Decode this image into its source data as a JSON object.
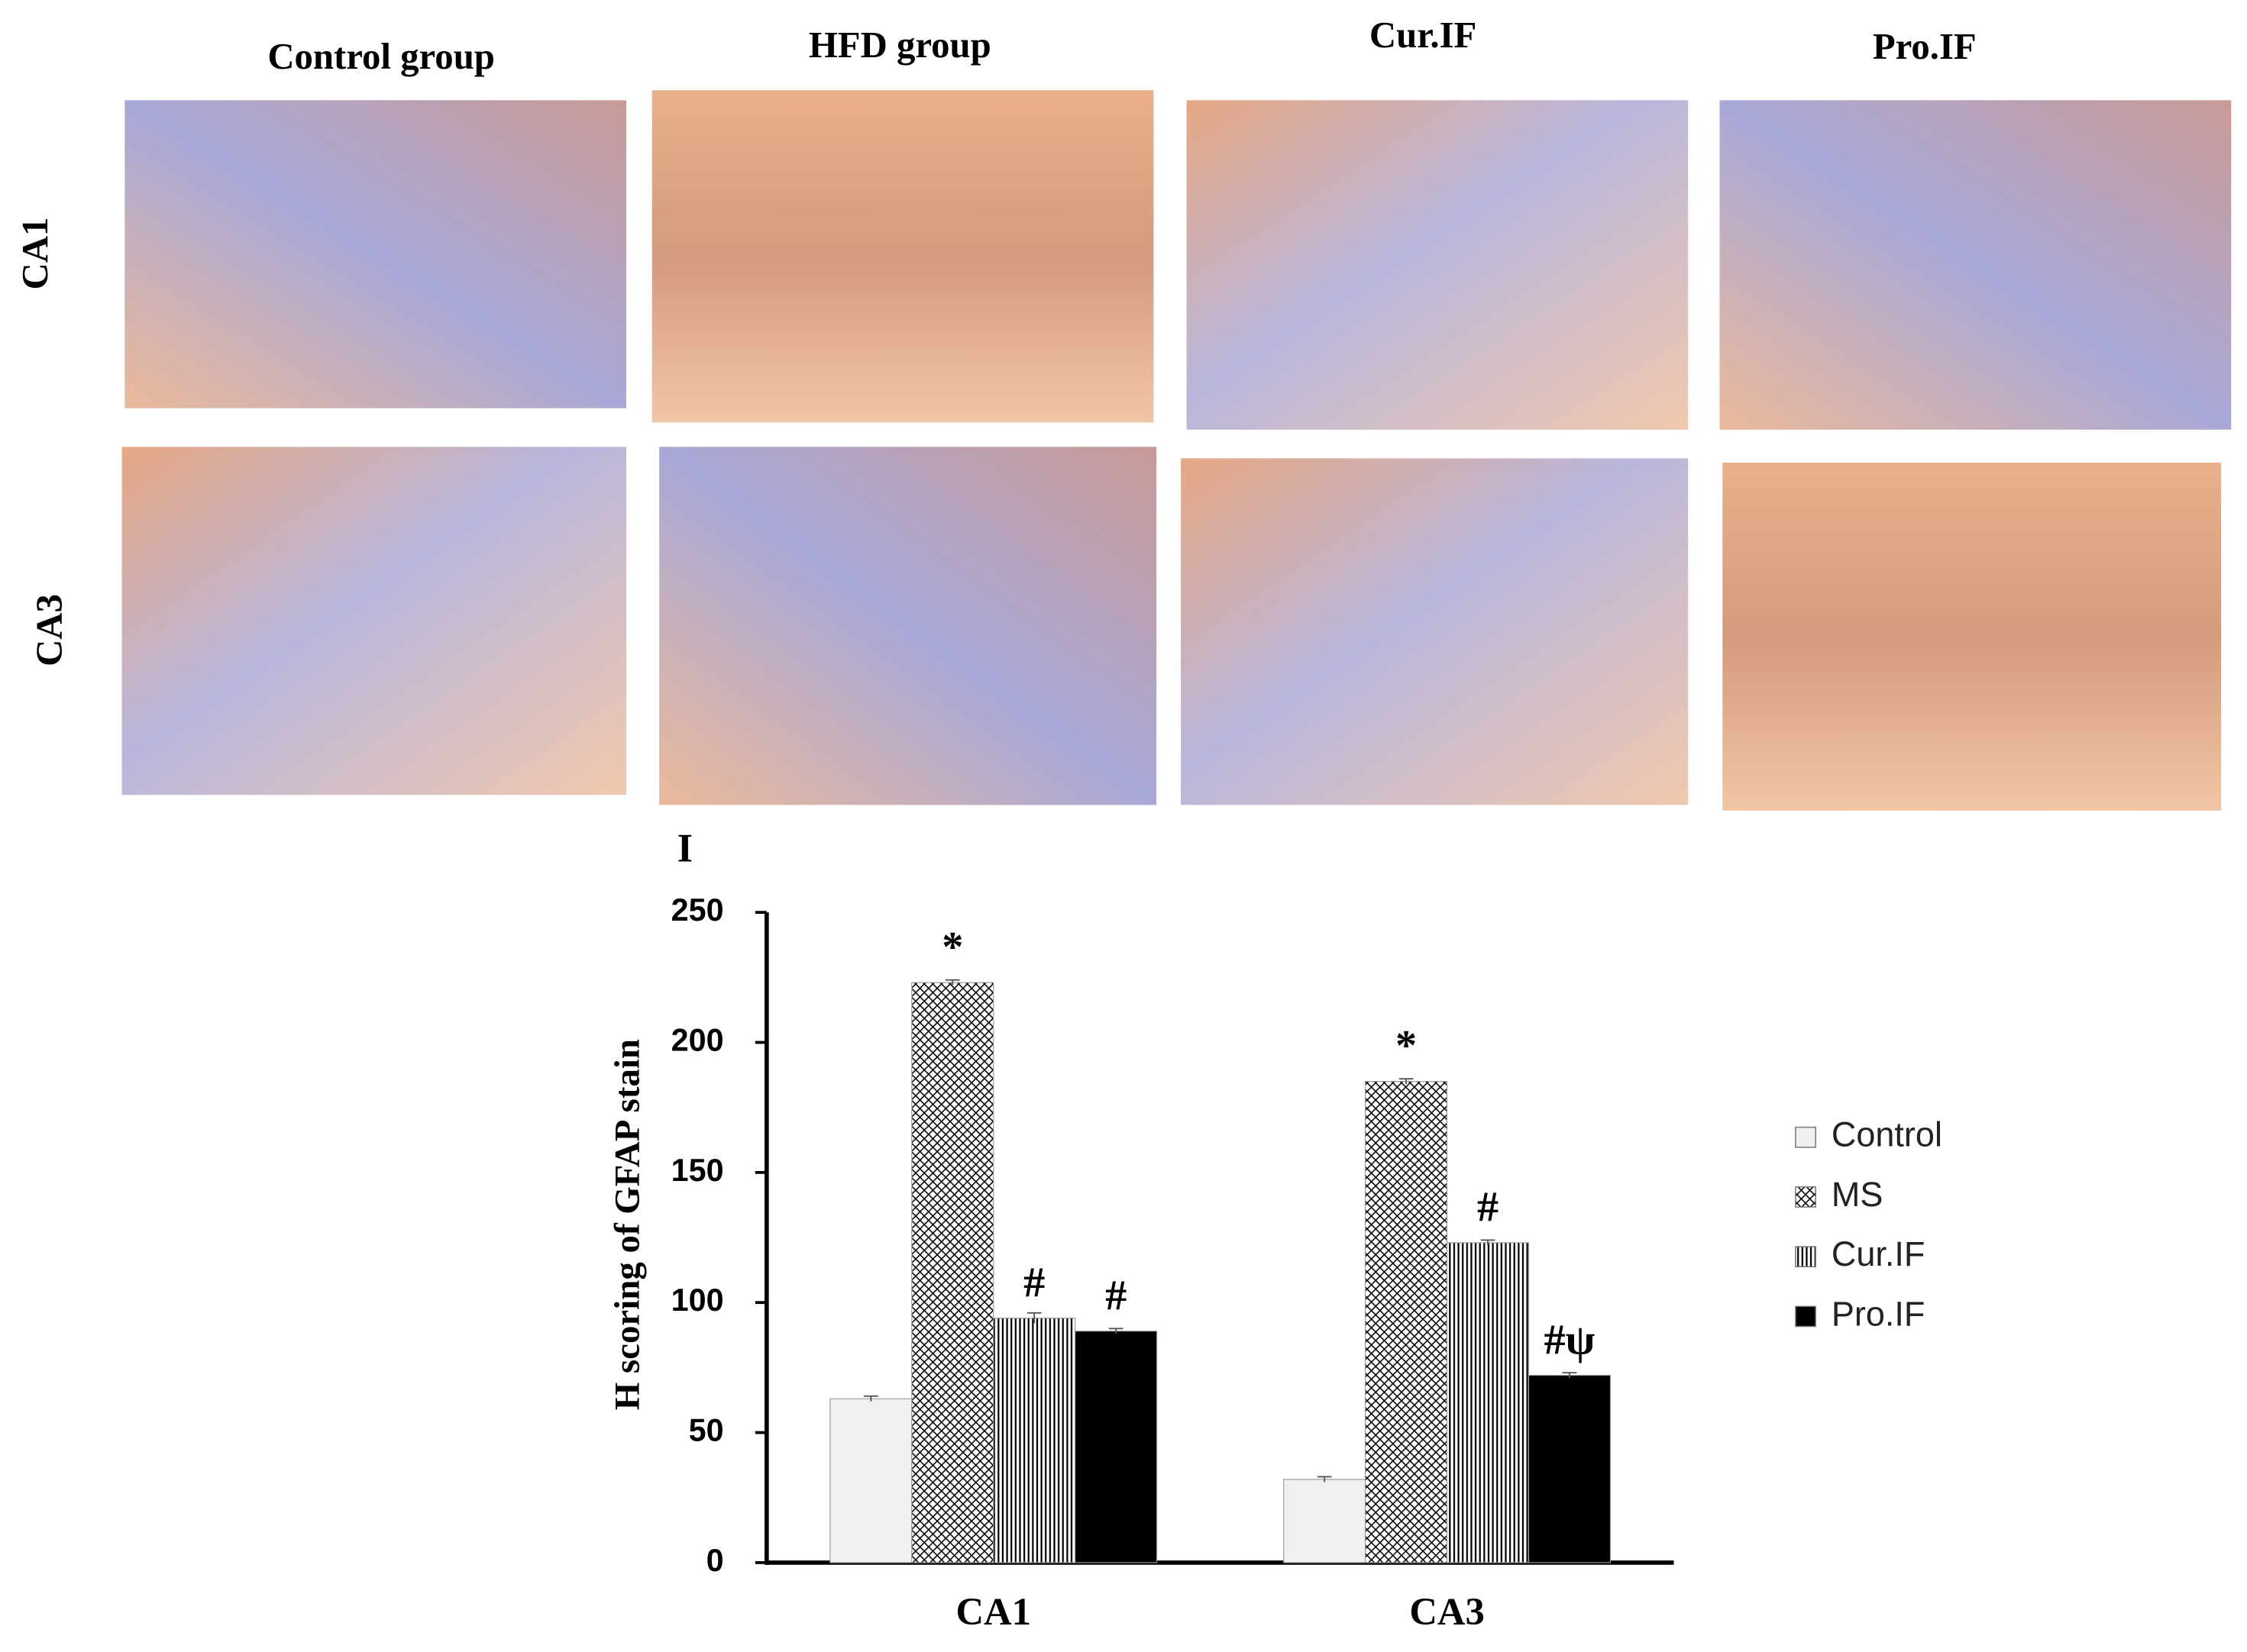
{
  "panels": {
    "columns": [
      "Control  group",
      "HFD group",
      "Cur.IF",
      "Pro.IF"
    ],
    "rows": [
      "CA1",
      "CA3"
    ],
    "panel_letter": "I"
  },
  "chart_data": {
    "type": "bar",
    "ylabel": "H scoring of GFAP stain",
    "categories": [
      "CA1",
      "CA3"
    ],
    "series": [
      {
        "name": "Control",
        "color": "#f0f0f0",
        "pattern": "solid",
        "values": [
          63,
          32
        ],
        "errors": [
          1,
          1
        ],
        "annotations": [
          null,
          null
        ]
      },
      {
        "name": "MS",
        "color": "#ffffff",
        "pattern": "crosshatch",
        "values": [
          223,
          185
        ],
        "errors": [
          1,
          1
        ],
        "annotations": [
          "*",
          "*"
        ]
      },
      {
        "name": "Cur.IF",
        "color": "#ffffff",
        "pattern": "vertical",
        "values": [
          94,
          123
        ],
        "errors": [
          2,
          1
        ],
        "annotations": [
          "#",
          "#"
        ]
      },
      {
        "name": "Pro.IF",
        "color": "#000000",
        "pattern": "solid",
        "values": [
          89,
          72
        ],
        "errors": [
          1,
          1
        ],
        "annotations": [
          "#",
          "#ψ"
        ]
      }
    ],
    "ylim": [
      0,
      250
    ],
    "yticks": [
      0,
      50,
      100,
      150,
      200,
      250
    ],
    "grid": false,
    "legend": "right"
  }
}
